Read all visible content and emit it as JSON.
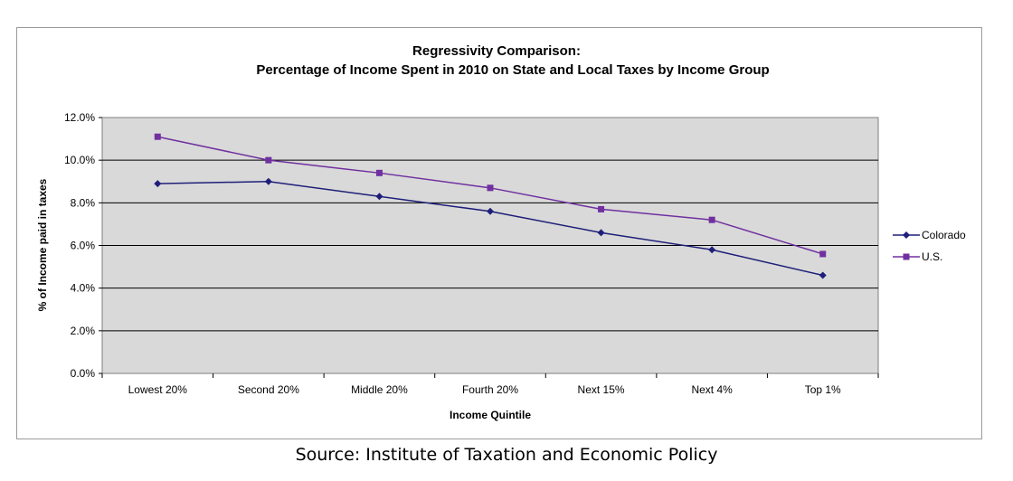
{
  "chart_data": {
    "type": "line",
    "title": "Regressivity Comparison:",
    "subtitle": "Percentage of Income Spent in 2010 on State and Local Taxes by Income Group",
    "xlabel": "Income Quintile",
    "ylabel": "% of Income paid in taxes",
    "categories": [
      "Lowest 20%",
      "Second 20%",
      "Middle 20%",
      "Fourth 20%",
      "Next 15%",
      "Next 4%",
      "Top 1%"
    ],
    "ylim": [
      0,
      12
    ],
    "yticks": [
      "0.0%",
      "2.0%",
      "4.0%",
      "6.0%",
      "8.0%",
      "10.0%",
      "12.0%"
    ],
    "ytick_values": [
      0,
      2,
      4,
      6,
      8,
      10,
      12
    ],
    "grid": true,
    "legend_position": "right",
    "series": [
      {
        "name": "Colorado",
        "marker": "diamond",
        "values": [
          8.9,
          9.0,
          8.3,
          7.6,
          6.6,
          5.8,
          4.6
        ]
      },
      {
        "name": "U.S.",
        "marker": "square",
        "values": [
          11.1,
          10.0,
          9.4,
          8.7,
          7.7,
          7.2,
          5.6
        ]
      }
    ]
  },
  "colors": {
    "plot_background": "#d9d9d9",
    "colorado": "#1f1f7a",
    "us": "#7030a0",
    "gridline": "#000000"
  },
  "source": "Source: Institute of Taxation and Economic Policy"
}
